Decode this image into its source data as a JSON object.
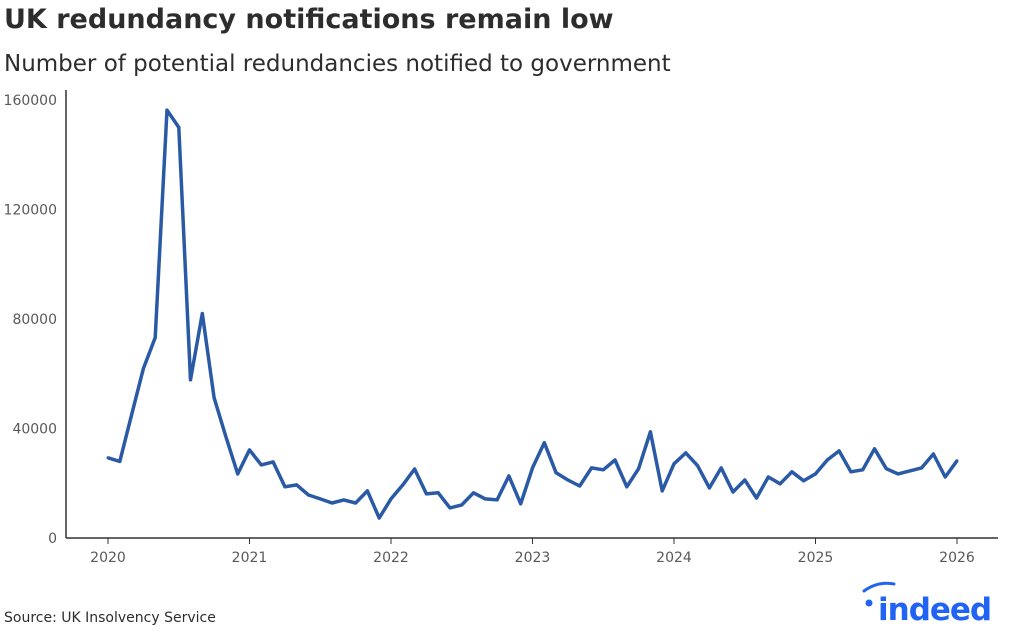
{
  "header": {
    "title": "UK redundancy notifications remain low",
    "subtitle": "Number of potential redundancies notified to government"
  },
  "footer": {
    "source": "Source: UK Insolvency Service",
    "logo_text": "indeed"
  },
  "colors": {
    "line": "#2a5aa6",
    "logo": "#2164f3",
    "axis": "#333333"
  },
  "chart_data": {
    "type": "line",
    "title": "UK redundancy notifications remain low",
    "subtitle": "Number of potential redundancies notified to government",
    "xlabel": "",
    "ylabel": "",
    "ylim": [
      0,
      160000
    ],
    "xlim": [
      "2019-10",
      "2026-03"
    ],
    "grid": false,
    "yticks": [
      "0",
      "40000",
      "80000",
      "120000",
      "160000"
    ],
    "xticks": [
      "2020",
      "2021",
      "2022",
      "2023",
      "2024",
      "2025",
      "2026"
    ],
    "x": [
      "2020-01",
      "2020-02",
      "2020-03",
      "2020-04",
      "2020-05",
      "2020-06",
      "2020-07",
      "2020-08",
      "2020-09",
      "2020-10",
      "2020-11",
      "2020-12",
      "2021-01",
      "2021-02",
      "2021-03",
      "2021-04",
      "2021-05",
      "2021-06",
      "2021-07",
      "2021-08",
      "2021-09",
      "2021-10",
      "2021-11",
      "2021-12",
      "2022-01",
      "2022-02",
      "2022-03",
      "2022-04",
      "2022-05",
      "2022-06",
      "2022-07",
      "2022-08",
      "2022-09",
      "2022-10",
      "2022-11",
      "2022-12",
      "2023-01",
      "2023-02",
      "2023-03",
      "2023-04",
      "2023-05",
      "2023-06",
      "2023-07",
      "2023-08",
      "2023-09",
      "2023-10",
      "2023-11",
      "2023-12",
      "2024-01",
      "2024-02",
      "2024-03",
      "2024-04",
      "2024-05",
      "2024-06",
      "2024-07",
      "2024-08",
      "2024-09",
      "2024-10",
      "2024-11",
      "2024-12",
      "2025-01",
      "2025-02",
      "2025-03",
      "2025-04",
      "2025-05",
      "2025-06",
      "2025-07",
      "2025-08",
      "2025-09",
      "2025-10",
      "2025-11",
      "2025-12",
      "2026-01"
    ],
    "series": [
      {
        "values": [
          29300,
          28000,
          45000,
          61900,
          73200,
          156300,
          150000,
          57800,
          82000,
          51200,
          37000,
          23400,
          32200,
          26700,
          27800,
          18700,
          19400,
          15700,
          14300,
          12800,
          13900,
          12800,
          17200,
          7300,
          14300,
          19400,
          25200,
          16100,
          16500,
          11000,
          12100,
          16500,
          14300,
          13900,
          22700,
          12500,
          25600,
          34800,
          23800,
          21200,
          19000,
          25600,
          24900,
          28500,
          18700,
          25300,
          38800,
          17200,
          27100,
          31100,
          26400,
          18300,
          25600,
          16800,
          21200,
          14600,
          22300,
          19800,
          24200,
          20900,
          23400,
          28500,
          31800,
          24200,
          24900,
          32600,
          25300,
          23400,
          24500,
          25600,
          30700,
          22300,
          28200
        ]
      }
    ]
  }
}
